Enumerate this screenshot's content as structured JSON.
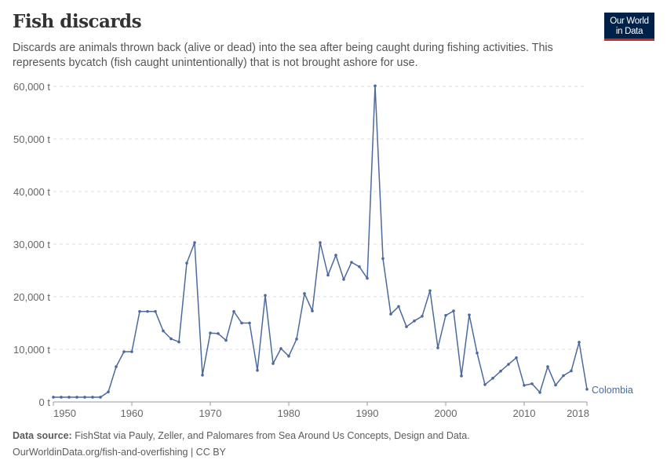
{
  "header": {
    "title": "Fish discards",
    "subtitle": "Discards are animals thrown back (alive or dead) into the sea after being caught during fishing activities. This represents bycatch (fish caught unintentionally) that is not brought ashore for use.",
    "logo": "Our World in Data",
    "logo_line1": "Our World",
    "logo_line2": "in Data"
  },
  "footer": {
    "source_label": "Data source:",
    "source": "FishStat via Pauly, Zeller, and Palomares from Sea Around Us Concepts, Design and Data.",
    "url_license": "OurWorldinData.org/fish-and-overfishing | CC BY"
  },
  "colors": {
    "series": "#4c6a9c",
    "brand": "#002147",
    "brand_accent": "#ce261e"
  },
  "chart_data": {
    "type": "line",
    "title": "Fish discards",
    "xlabel": "",
    "ylabel": "",
    "xlim": [
      1950,
      2018
    ],
    "ylim": [
      0,
      60000
    ],
    "grid": "horizontal dashed",
    "legend": "inline-right",
    "y_ticks": [
      0,
      10000,
      20000,
      30000,
      40000,
      50000,
      60000
    ],
    "y_tick_labels": [
      "0 t",
      "10,000 t",
      "20,000 t",
      "30,000 t",
      "40,000 t",
      "50,000 t",
      "60,000 t"
    ],
    "x_ticks": [
      1950,
      1960,
      1970,
      1980,
      1990,
      2000,
      2010,
      2018
    ],
    "x_tick_labels": [
      "1950",
      "1960",
      "1970",
      "1980",
      "1990",
      "2000",
      "2010",
      "2018"
    ],
    "series": [
      {
        "name": "Colombia",
        "x": [
          1950,
          1951,
          1952,
          1953,
          1954,
          1955,
          1956,
          1957,
          1958,
          1959,
          1960,
          1961,
          1962,
          1963,
          1964,
          1965,
          1966,
          1967,
          1968,
          1969,
          1970,
          1971,
          1972,
          1973,
          1974,
          1975,
          1976,
          1977,
          1978,
          1979,
          1980,
          1981,
          1982,
          1983,
          1984,
          1985,
          1986,
          1987,
          1988,
          1989,
          1990,
          1991,
          1992,
          1993,
          1994,
          1995,
          1996,
          1997,
          1998,
          1999,
          2000,
          2001,
          2002,
          2003,
          2004,
          2005,
          2006,
          2007,
          2008,
          2009,
          2010,
          2011,
          2012,
          2013,
          2014,
          2015,
          2016,
          2017,
          2018
        ],
        "values": [
          900,
          900,
          900,
          900,
          900,
          900,
          900,
          1900,
          6700,
          9550,
          9550,
          17200,
          17200,
          17200,
          13500,
          12000,
          11400,
          26400,
          30300,
          5100,
          13100,
          13000,
          11700,
          17200,
          15000,
          15000,
          6000,
          20250,
          7300,
          10150,
          8700,
          11950,
          20600,
          17300,
          30300,
          24100,
          27900,
          23300,
          26550,
          25700,
          23500,
          60100,
          27250,
          16700,
          18150,
          14300,
          15400,
          16300,
          21150,
          10300,
          16450,
          17300,
          4950,
          16550,
          9300,
          3300,
          4500,
          5850,
          7150,
          8400,
          3150,
          3450,
          1800,
          6700,
          3200,
          5000,
          5900,
          11350,
          2400
        ]
      }
    ]
  }
}
